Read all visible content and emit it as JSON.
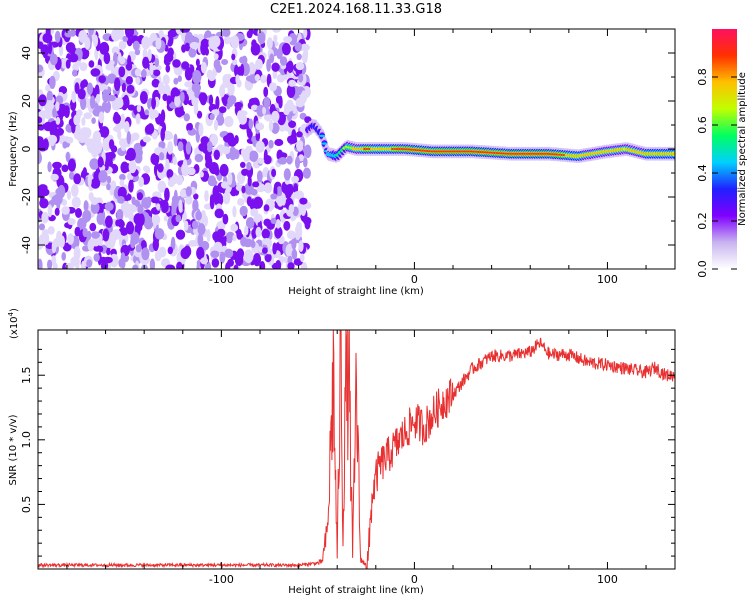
{
  "title": "C2E1.2024.168.11.33.G18",
  "chart_data": [
    {
      "type": "heatmap",
      "xlabel": "Height of straight line (km)",
      "ylabel": "Frequency (Hz)",
      "xlim": [
        -195,
        135
      ],
      "ylim": [
        -50,
        50
      ],
      "x_ticks": [
        "-100",
        "0",
        "100"
      ],
      "x_tick_values": [
        -100,
        0,
        100
      ],
      "y_ticks": [
        "40",
        "20",
        "0",
        "-20",
        "-40"
      ],
      "y_tick_values": [
        40,
        20,
        0,
        -20,
        -40
      ],
      "colorbar": {
        "label": "Normalized spectral amplitude",
        "range": [
          0.0,
          1.0
        ],
        "ticks": [
          "0.0",
          "0.2",
          "0.4",
          "0.6",
          "0.8"
        ],
        "tick_values": [
          0.0,
          0.2,
          0.4,
          0.6,
          0.8
        ],
        "colors": [
          "#ffffff",
          "#c8b4f0",
          "#8000ff",
          "#2020ff",
          "#00d0ff",
          "#00ff60",
          "#c0ff00",
          "#ffc000",
          "#ff3000",
          "#ff1060"
        ]
      },
      "noise_region_x": [
        -195,
        -55
      ],
      "noise_amplitude": 0.15,
      "signal_track": [
        {
          "x": -55,
          "y": 8,
          "amp": 0.3
        },
        {
          "x": -52,
          "y": 10,
          "amp": 0.35
        },
        {
          "x": -48,
          "y": 6,
          "amp": 0.4
        },
        {
          "x": -45,
          "y": -2,
          "amp": 0.45
        },
        {
          "x": -40,
          "y": -3,
          "amp": 0.5
        },
        {
          "x": -35,
          "y": 1,
          "amp": 0.65
        },
        {
          "x": -30,
          "y": 0,
          "amp": 0.75
        },
        {
          "x": -25,
          "y": 0,
          "amp": 0.85
        },
        {
          "x": -15,
          "y": 0,
          "amp": 0.8
        },
        {
          "x": -5,
          "y": 0,
          "amp": 0.88
        },
        {
          "x": 10,
          "y": -1,
          "amp": 0.85
        },
        {
          "x": 30,
          "y": -1,
          "amp": 0.85
        },
        {
          "x": 50,
          "y": -2,
          "amp": 0.9
        },
        {
          "x": 70,
          "y": -2,
          "amp": 0.88
        },
        {
          "x": 85,
          "y": -3,
          "amp": 0.8
        },
        {
          "x": 100,
          "y": -1,
          "amp": 0.75
        },
        {
          "x": 110,
          "y": 0,
          "amp": 0.72
        },
        {
          "x": 120,
          "y": -2,
          "amp": 0.8
        },
        {
          "x": 135,
          "y": -2,
          "amp": 0.8
        }
      ]
    },
    {
      "type": "line",
      "xlabel": "Height of straight line (km)",
      "ylabel": "SNR (10 * v/v)",
      "y_scale_label": "(x10",
      "y_scale_exp": "4",
      "y_scale_close": ")",
      "xlim": [
        -195,
        135
      ],
      "ylim": [
        0,
        1.85
      ],
      "x_ticks": [
        "-100",
        "0",
        "100"
      ],
      "x_tick_values": [
        -100,
        0,
        100
      ],
      "y_ticks": [
        "1.5",
        "1.0",
        "0.5"
      ],
      "y_tick_values": [
        1.5,
        1.0,
        0.5
      ],
      "color": "#e83030",
      "series": [
        {
          "x": [
            -195,
            -150,
            -100,
            -60,
            -48,
            -45,
            -42,
            -40,
            -38,
            -37,
            -36,
            -34,
            -32,
            -30,
            -28,
            -27,
            -26,
            -24,
            -22,
            -20,
            -18,
            -15,
            -10,
            -5,
            0,
            5,
            10,
            15,
            20,
            25,
            30,
            35,
            40,
            50,
            60,
            65,
            70,
            80,
            90,
            100,
            110,
            120,
            125,
            130,
            135
          ],
          "y": [
            0.03,
            0.03,
            0.03,
            0.03,
            0.05,
            0.3,
            1.5,
            0.1,
            1.85,
            0.2,
            1.3,
            1.6,
            0.1,
            1.45,
            0.1,
            0.05,
            0.05,
            0.05,
            0.55,
            0.7,
            0.8,
            0.85,
            0.95,
            1.05,
            1.15,
            1.1,
            1.2,
            1.3,
            1.35,
            1.45,
            1.55,
            1.6,
            1.65,
            1.65,
            1.68,
            1.75,
            1.66,
            1.66,
            1.6,
            1.58,
            1.55,
            1.52,
            1.56,
            1.5,
            1.5
          ]
        }
      ]
    }
  ]
}
